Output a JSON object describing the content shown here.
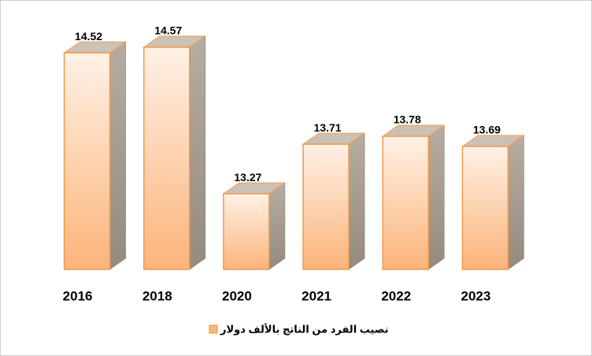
{
  "chart_data": {
    "type": "bar3d",
    "categories": [
      "2016",
      "2018",
      "2020",
      "2021",
      "2022",
      "2023"
    ],
    "series": [
      {
        "name": "نصيب الفرد من الناتج بالألف دولار",
        "color": "#fbb880",
        "values": [
          14.52,
          14.57,
          13.27,
          13.71,
          13.78,
          13.69
        ]
      }
    ],
    "ylim": [
      12.6,
      14.8
    ]
  }
}
